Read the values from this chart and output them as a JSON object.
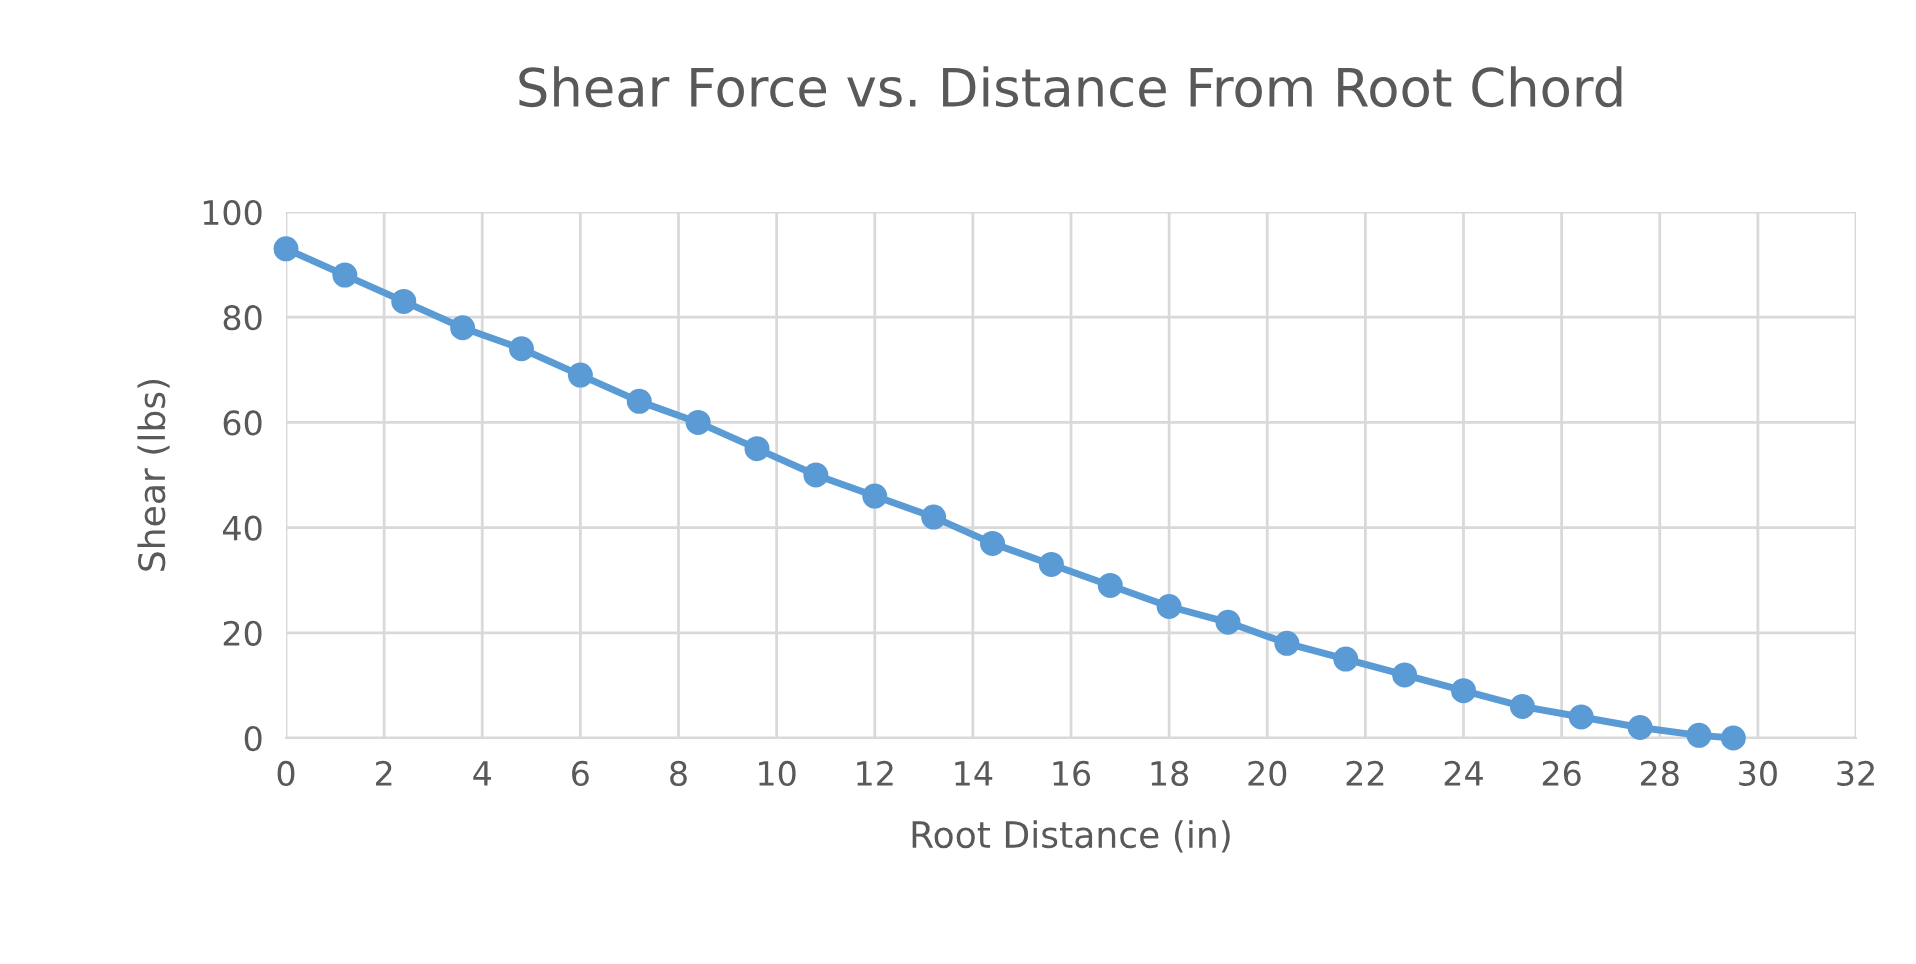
{
  "chart_data": {
    "type": "line",
    "title": "Shear Force vs. Distance From Root Chord",
    "xlabel": "Root Distance (in)",
    "ylabel": "Shear (lbs)",
    "x": [
      0,
      1.2,
      2.4,
      3.6,
      4.8,
      6,
      7.2,
      8.4,
      9.6,
      10.8,
      12,
      13.2,
      14.4,
      15.6,
      16.8,
      18,
      19.2,
      20.4,
      21.6,
      22.8,
      24,
      25.2,
      26.4,
      27.6,
      28.8,
      29.5
    ],
    "series": [
      {
        "color": "#5b9bd5",
        "values": [
          93,
          88,
          83,
          78,
          74,
          69,
          64,
          60,
          55,
          50,
          46,
          42,
          37,
          33,
          29,
          25,
          22,
          18,
          15,
          12,
          9,
          6,
          4,
          2,
          0.5,
          0
        ]
      }
    ],
    "xlim": [
      0,
      32
    ],
    "xticks": [
      0,
      2,
      4,
      6,
      8,
      10,
      12,
      14,
      16,
      18,
      20,
      22,
      24,
      26,
      28,
      30,
      32
    ],
    "ylim": [
      0,
      100
    ],
    "yticks": [
      0,
      20,
      40,
      60,
      80,
      100
    ],
    "grid": true,
    "marker": "circle",
    "line_style": "solid"
  }
}
